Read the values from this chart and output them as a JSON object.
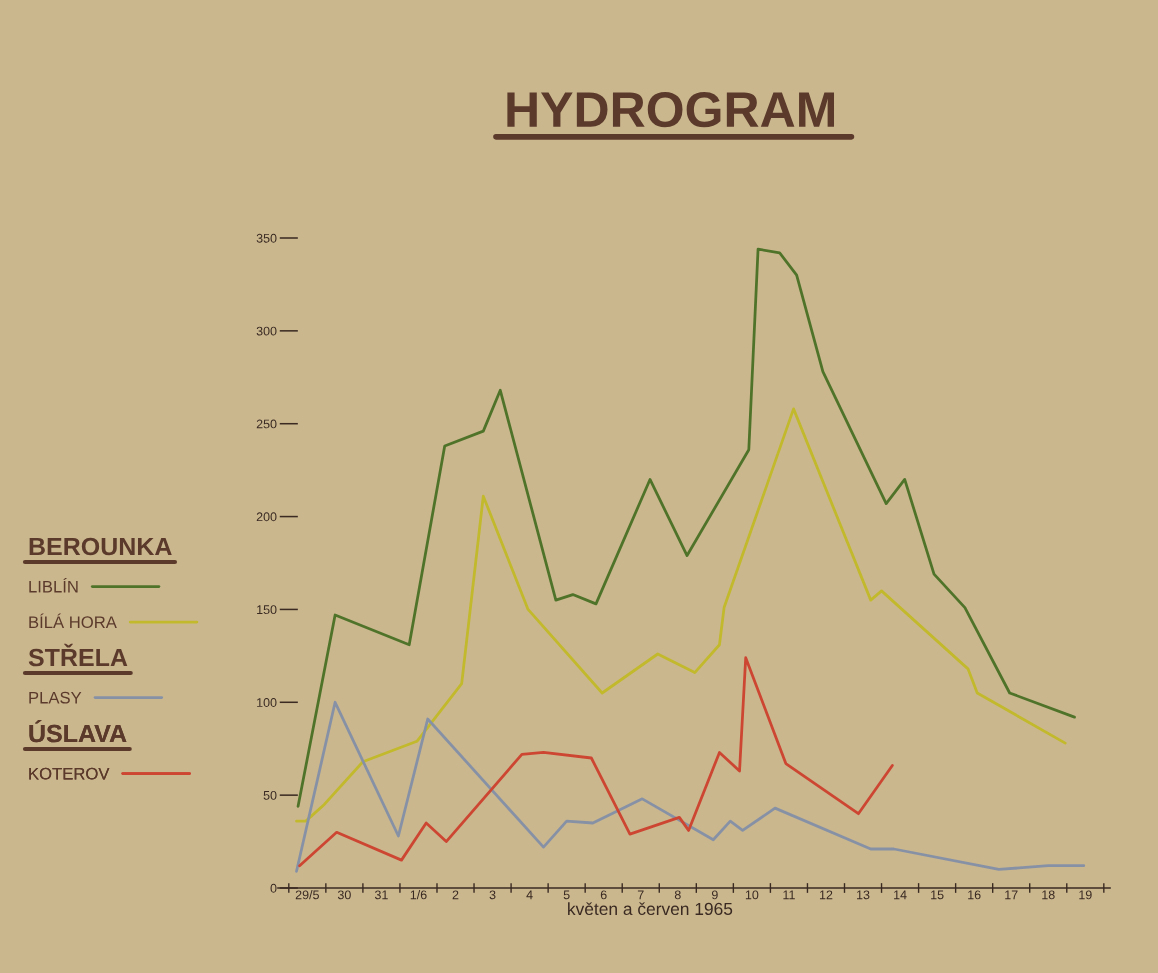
{
  "chart_data": {
    "type": "line",
    "title": "HYDROGRAM",
    "xlabel": "květen a červen 1965",
    "xlim": [
      "1965-05-28T17:00",
      "1965-06-20T04:00"
    ],
    "xticks": [
      {
        "value": "1965-05-29",
        "label": null
      },
      {
        "value": "1965-05-29T12:00",
        "label": "29/5"
      },
      {
        "value": "1965-05-30",
        "label": null
      },
      {
        "value": "1965-05-30T12:00",
        "label": "30"
      },
      {
        "value": "1965-05-31",
        "label": null
      },
      {
        "value": "1965-05-31T12:00",
        "label": "31"
      },
      {
        "value": "1965-06-01",
        "label": null
      },
      {
        "value": "1965-06-01T12:00",
        "label": "1/6"
      },
      {
        "value": "1965-06-02",
        "label": null
      },
      {
        "value": "1965-06-02T12:00",
        "label": "2"
      },
      {
        "value": "1965-06-03",
        "label": null
      },
      {
        "value": "1965-06-03T12:00",
        "label": "3"
      },
      {
        "value": "1965-06-04",
        "label": null
      },
      {
        "value": "1965-06-04T12:00",
        "label": "4"
      },
      {
        "value": "1965-06-05",
        "label": null
      },
      {
        "value": "1965-06-05T12:00",
        "label": "5"
      },
      {
        "value": "1965-06-06",
        "label": null
      },
      {
        "value": "1965-06-06T12:00",
        "label": "6"
      },
      {
        "value": "1965-06-07",
        "label": null
      },
      {
        "value": "1965-06-07T12:00",
        "label": "7"
      },
      {
        "value": "1965-06-08",
        "label": null
      },
      {
        "value": "1965-06-08T12:00",
        "label": "8"
      },
      {
        "value": "1965-06-09",
        "label": null
      },
      {
        "value": "1965-06-09T12:00",
        "label": "9"
      },
      {
        "value": "1965-06-10",
        "label": null
      },
      {
        "value": "1965-06-10T12:00",
        "label": "10"
      },
      {
        "value": "1965-06-11",
        "label": null
      },
      {
        "value": "1965-06-11T12:00",
        "label": "11"
      },
      {
        "value": "1965-06-12",
        "label": null
      },
      {
        "value": "1965-06-12T12:00",
        "label": "12"
      },
      {
        "value": "1965-06-13",
        "label": null
      },
      {
        "value": "1965-06-13T12:00",
        "label": "13"
      },
      {
        "value": "1965-06-14",
        "label": null
      },
      {
        "value": "1965-06-14T12:00",
        "label": "14"
      },
      {
        "value": "1965-06-15",
        "label": null
      },
      {
        "value": "1965-06-15T12:00",
        "label": "15"
      },
      {
        "value": "1965-06-16",
        "label": null
      },
      {
        "value": "1965-06-16T12:00",
        "label": "16"
      },
      {
        "value": "1965-06-17",
        "label": null
      },
      {
        "value": "1965-06-17T12:00",
        "label": "17"
      },
      {
        "value": "1965-06-18",
        "label": null
      },
      {
        "value": "1965-06-18T12:00",
        "label": "18"
      },
      {
        "value": "1965-06-19",
        "label": null
      },
      {
        "value": "1965-06-19T12:00",
        "label": "19"
      },
      {
        "value": "1965-06-20",
        "label": null
      }
    ],
    "ylim": [
      0,
      350
    ],
    "yticks": [
      0,
      50,
      100,
      150,
      200,
      250,
      300,
      350
    ],
    "series": [
      {
        "name": "LIBLÍN",
        "color": "#50732a",
        "x": [
          "1965-05-29T06:00",
          "1965-05-30T06:00",
          "1965-06-01T06:00",
          "1965-06-02T05:00",
          "1965-06-03T06:00",
          "1965-06-03T17:00",
          "1965-06-05T05:00",
          "1965-06-05T16:00",
          "1965-06-06T07:00",
          "1965-06-07T18:00",
          "1965-06-08T18:00",
          "1965-06-10T10:00",
          "1965-06-10T16:00",
          "1965-06-11T06:00",
          "1965-06-11T17:00",
          "1965-06-12T10:00",
          "1965-06-14T03:00",
          "1965-06-14T15:00",
          "1965-06-15T10:00",
          "1965-06-16T06:00",
          "1965-06-17T11:00",
          "1965-06-19T05:00"
        ],
        "values": [
          44,
          147,
          131,
          238,
          246,
          268,
          155,
          158,
          153,
          220,
          179,
          236,
          344,
          342,
          330,
          278,
          207,
          220,
          169,
          151,
          105,
          92
        ]
      },
      {
        "name": "BÍLÁ HORA",
        "color": "#c2b92c",
        "x": [
          "1965-05-29T05:00",
          "1965-05-29T11:00",
          "1965-05-29T23:00",
          "1965-05-31T00:00",
          "1965-06-01T11:00",
          "1965-06-02T16:00",
          "1965-06-03T06:00",
          "1965-06-04T11:00",
          "1965-06-06T11:00",
          "1965-06-07T23:00",
          "1965-06-08T23:00",
          "1965-06-09T15:00",
          "1965-06-09T18:00",
          "1965-06-11T15:00",
          "1965-06-13T17:00",
          "1965-06-14T00:00",
          "1965-06-16T08:00",
          "1965-06-16T14:00",
          "1965-06-18T23:00"
        ],
        "values": [
          36,
          36,
          45,
          68,
          79,
          110,
          211,
          150,
          105,
          126,
          116,
          131,
          151,
          258,
          155,
          160,
          118,
          105,
          78
        ]
      },
      {
        "name": "PLASY",
        "color": "#8791a6",
        "x": [
          "1965-05-29T05:00",
          "1965-05-30T06:00",
          "1965-05-31T23:00",
          "1965-06-01T18:00",
          "1965-06-04T21:00",
          "1965-06-05T12:00",
          "1965-06-06T05:00",
          "1965-06-07T13:00",
          "1965-06-09T11:00",
          "1965-06-09T22:00",
          "1965-06-10T06:00",
          "1965-06-11T03:00",
          "1965-06-13T17:00",
          "1965-06-14T08:00",
          "1965-06-17T04:00",
          "1965-06-18T12:00",
          "1965-06-19T11:00"
        ],
        "values": [
          9,
          100,
          28,
          91,
          22,
          36,
          35,
          48,
          26,
          36,
          31,
          43,
          21,
          21,
          10,
          12,
          12
        ]
      },
      {
        "name": "KOTEROV",
        "color": "#cd4632",
        "x": [
          "1965-05-29T07:00",
          "1965-05-30T07:00",
          "1965-06-01T01:00",
          "1965-06-01T17:00",
          "1965-06-02T06:00",
          "1965-06-04T07:00",
          "1965-06-04T21:00",
          "1965-06-06T04:00",
          "1965-06-07T05:00",
          "1965-06-08T13:00",
          "1965-06-08T19:00",
          "1965-06-09T15:00",
          "1965-06-10T04:00",
          "1965-06-10T08:00",
          "1965-06-11T10:00",
          "1965-06-13T09:00",
          "1965-06-14T07:00"
        ],
        "values": [
          12,
          30,
          15,
          35,
          25,
          72,
          73,
          70,
          29,
          38,
          31,
          73,
          63,
          124,
          67,
          40,
          66
        ]
      }
    ],
    "legend": "left",
    "line_style": "solid",
    "annotations": [
      "BEROUNKA",
      "STŘELA",
      "ÚSLAVA"
    ]
  }
}
